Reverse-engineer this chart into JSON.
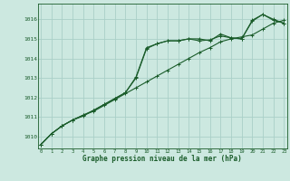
{
  "background_color": "#cce8e0",
  "plot_bg_color": "#cce8e0",
  "grid_color": "#aacfc8",
  "line_color": "#1a5c2a",
  "x_ticks": [
    0,
    1,
    2,
    3,
    4,
    5,
    6,
    7,
    8,
    9,
    10,
    11,
    12,
    13,
    14,
    15,
    16,
    17,
    18,
    19,
    20,
    21,
    22,
    23
  ],
  "ylim": [
    1009.4,
    1016.8
  ],
  "yticks": [
    1010,
    1011,
    1012,
    1013,
    1014,
    1015,
    1016
  ],
  "xlabel": "Graphe pression niveau de la mer (hPa)",
  "line1": [
    1009.6,
    1010.15,
    1010.55,
    1010.85,
    1011.05,
    1011.35,
    1011.65,
    1011.95,
    1012.25,
    1013.05,
    1014.55,
    1014.75,
    1014.9,
    1014.9,
    1015.0,
    1015.0,
    1014.9,
    1015.25,
    1015.05,
    1015.0,
    1015.95,
    1016.25,
    1016.0,
    1015.8
  ],
  "line2": [
    1009.6,
    1010.15,
    1010.55,
    1010.85,
    1011.1,
    1011.3,
    1011.6,
    1011.9,
    1012.2,
    1012.5,
    1012.8,
    1013.1,
    1013.4,
    1013.7,
    1014.0,
    1014.3,
    1014.55,
    1014.85,
    1015.0,
    1015.1,
    1015.2,
    1015.5,
    1015.8,
    1015.95
  ],
  "line3": [
    1009.6,
    1010.15,
    1010.55,
    1010.85,
    1011.1,
    1011.35,
    1011.65,
    1011.95,
    1012.25,
    1013.0,
    1014.5,
    1014.75,
    1014.9,
    1014.9,
    1015.0,
    1014.9,
    1014.95,
    1015.15,
    1015.05,
    1015.0,
    1015.9,
    1016.25,
    1015.95,
    1015.8
  ]
}
